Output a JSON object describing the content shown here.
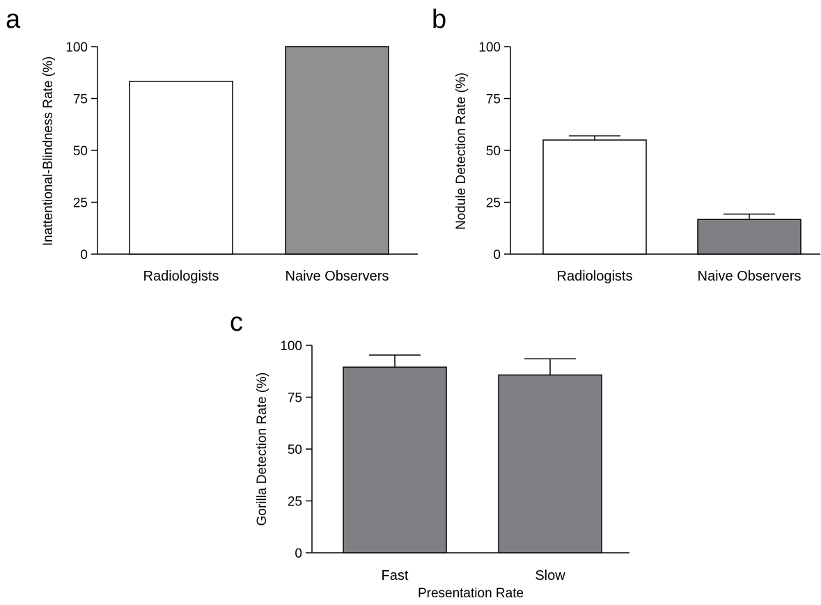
{
  "chart_data": [
    {
      "panel": "a",
      "type": "bar",
      "categories": [
        "Radiologists",
        "Naive Observers"
      ],
      "values": [
        83.3,
        100
      ],
      "errors": [
        null,
        null
      ],
      "colors": [
        "#ffffff",
        "#8f9092"
      ],
      "ylabel": "Inattentional-Blindness Rate (%)",
      "xlabel": "",
      "ylim": [
        0,
        100
      ],
      "yticks": [
        "0",
        "25",
        "50",
        "75",
        "100"
      ]
    },
    {
      "panel": "b",
      "type": "bar",
      "categories": [
        "Radiologists",
        "Naive Observers"
      ],
      "values": [
        55,
        16.7
      ],
      "errors": [
        2,
        2.6
      ],
      "colors": [
        "#ffffff",
        "#7f8084"
      ],
      "ylabel": "Nodule Detection Rate (%)",
      "xlabel": "",
      "ylim": [
        0,
        100
      ],
      "yticks": [
        "0",
        "25",
        "50",
        "75",
        "100"
      ]
    },
    {
      "panel": "c",
      "type": "bar",
      "categories": [
        "Fast",
        "Slow"
      ],
      "values": [
        89.5,
        85.7
      ],
      "errors": [
        5.8,
        7.8
      ],
      "colors": [
        "#7f8084",
        "#7f8084"
      ],
      "ylabel": "Gorilla Detection Rate (%)",
      "xlabel": "Presentation Rate",
      "ylim": [
        0,
        100
      ],
      "yticks": [
        "0",
        "25",
        "50",
        "75",
        "100"
      ]
    }
  ]
}
